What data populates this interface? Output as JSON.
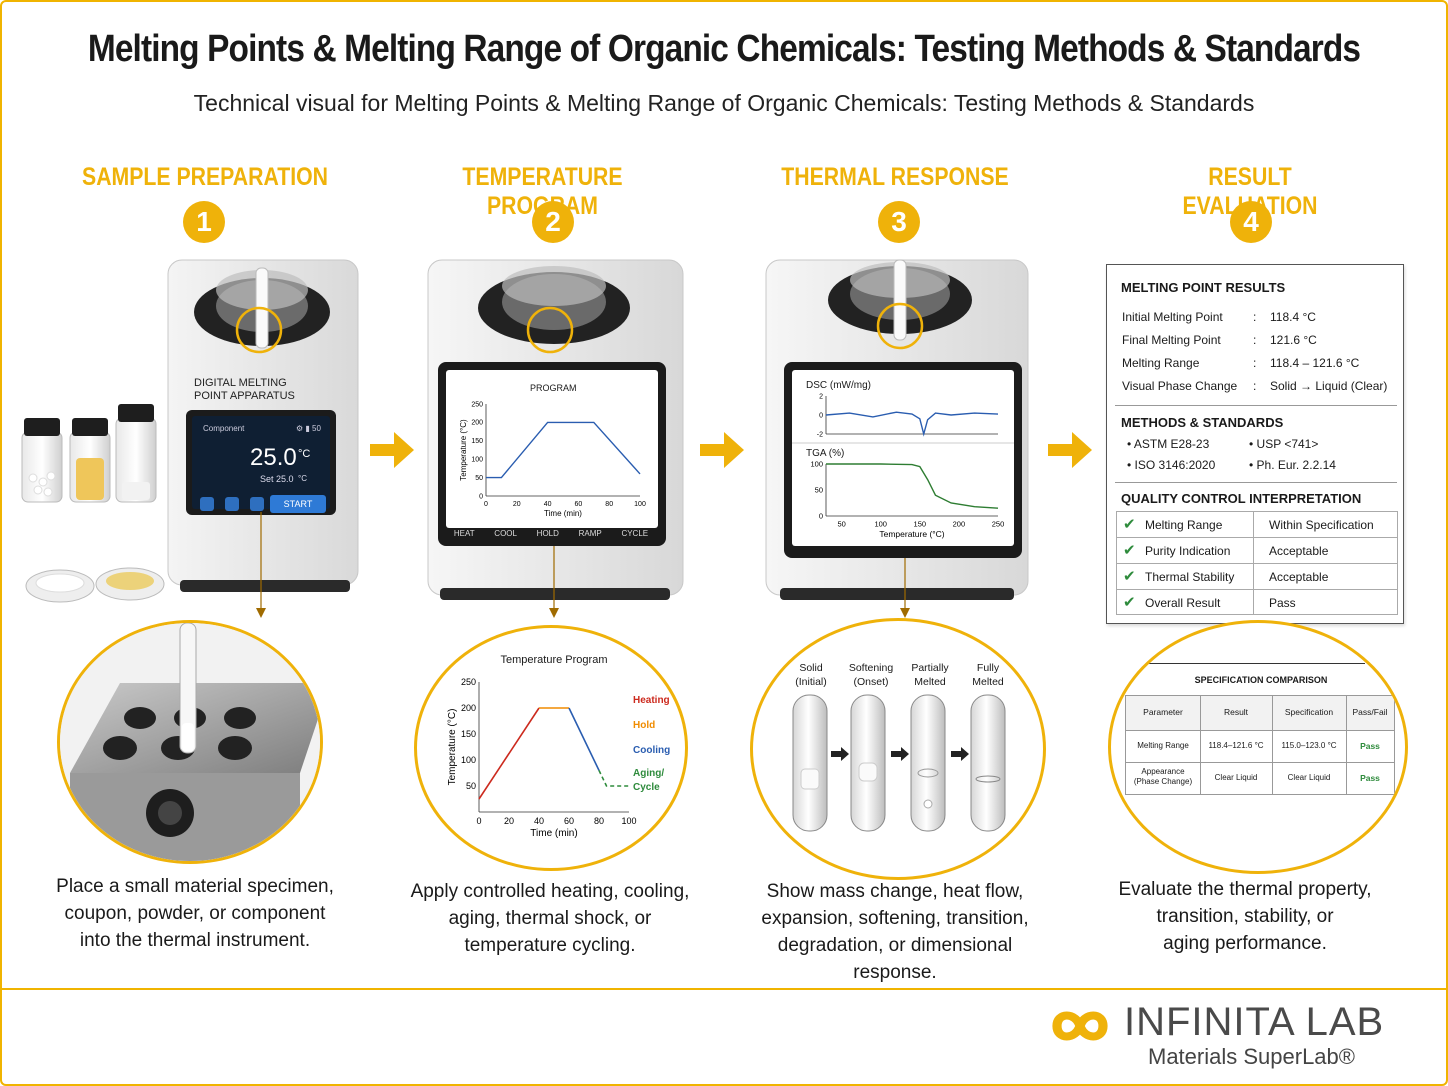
{
  "title": "Melting Points & Melting Range of Organic Chemicals: Testing Methods & Standards",
  "subtitle": "Technical visual for Melting Points & Melting Range of Organic Chemicals: Testing Methods & Standards",
  "colors": {
    "accent": "#efb20a",
    "heating": "#cc2a1e",
    "hold": "#f08c00",
    "cooling": "#2a5db0",
    "aging": "#2e8b3c",
    "dsc": "#2a5db0",
    "tga": "#2e7d32"
  },
  "steps": [
    {
      "number": "1",
      "heading": "SAMPLE PREPARATION",
      "description": [
        "Place a small material specimen,",
        "coupon, powder, or component",
        "into the thermal instrument."
      ]
    },
    {
      "number": "2",
      "heading": "TEMPERATURE PROGRAM",
      "description": [
        "Apply controlled heating, cooling,",
        "aging, thermal shock, or",
        "temperature cycling."
      ]
    },
    {
      "number": "3",
      "heading": "THERMAL RESPONSE",
      "description": [
        "Show mass change, heat flow,",
        "expansion, softening, transition,",
        "degradation, or dimensional response."
      ]
    },
    {
      "number": "4",
      "heading": "RESULT EVALUATION",
      "description": [
        "Evaluate the thermal property,",
        "transition, stability, or",
        "aging performance."
      ]
    }
  ],
  "device1": {
    "label_line1": "DIGITAL MELTING",
    "label_line2": "POINT APPARATUS",
    "screen_header": "Component",
    "screen_status": "⚙ ▮ 50",
    "reading": "25.0",
    "reading_unit": "°C",
    "set_label": "Set",
    "set_value": "25.0",
    "set_unit": "°C",
    "start_label": "START"
  },
  "device2": {
    "screen_title": "PROGRAM",
    "ylabel": "Temperature (°C)",
    "xlabel": "Time (min)",
    "buttons": [
      "HEAT",
      "COOL",
      "HOLD",
      "RAMP",
      "CYCLE"
    ]
  },
  "device3": {
    "dsc_label": "DSC (mW/mg)",
    "tga_label": "TGA (%)",
    "xlabel": "Temperature (°C)"
  },
  "temp_program_zoom": {
    "title": "Temperature Program",
    "ylabel": "Temperature (°C)",
    "xlabel": "Time (min)",
    "legend": [
      "Heating",
      "Hold",
      "Cooling",
      "Aging/",
      "Cycle"
    ]
  },
  "tube_stages": [
    {
      "line1": "Solid",
      "line2": "(Initial)"
    },
    {
      "line1": "Softening",
      "line2": "(Onset)"
    },
    {
      "line1": "Partially",
      "line2": "Melted"
    },
    {
      "line1": "Fully",
      "line2": "Melted"
    }
  ],
  "results": {
    "heading": "MELTING POINT RESULTS",
    "rows": [
      {
        "label": "Initial Melting Point",
        "sep": ":",
        "value": "118.4 °C"
      },
      {
        "label": "Final Melting Point",
        "sep": ":",
        "value": "121.6 °C"
      },
      {
        "label": "Melting Range",
        "sep": ":",
        "value": "118.4 – 121.6 °C"
      },
      {
        "label": "Visual Phase Change",
        "sep": ":",
        "value": "Solid → Liquid (Clear)"
      }
    ],
    "methods_heading": "METHODS & STANDARDS",
    "methods": [
      "• ASTM E28-23",
      "• USP <741>",
      "• ISO 3146:2020",
      "• Ph. Eur. 2.2.14"
    ],
    "qc_heading": "QUALITY CONTROL INTERPRETATION",
    "qc_rows": [
      {
        "item": "Melting Range",
        "status": "Within Specification"
      },
      {
        "item": "Purity Indication",
        "status": "Acceptable"
      },
      {
        "item": "Thermal Stability",
        "status": "Acceptable"
      },
      {
        "item": "Overall Result",
        "status": "Pass"
      }
    ]
  },
  "spec_comparison": {
    "title": "SPECIFICATION COMPARISON",
    "headers": [
      "Parameter",
      "Result",
      "Specification",
      "Pass/Fail"
    ],
    "rows": [
      [
        "Melting Range",
        "118.4–121.6 °C",
        "115.0–123.0 °C",
        "Pass"
      ],
      [
        "Appearance",
        "Clear Liquid",
        "Clear Liquid",
        "Pass"
      ]
    ],
    "row2_param_line2": "(Phase Change)"
  },
  "logo": {
    "name": "INFINITA LAB",
    "tagline": "Materials SuperLab®"
  },
  "chart_data": [
    {
      "type": "line",
      "title": "PROGRAM",
      "xlabel": "Time (min)",
      "ylabel": "Temperature (°C)",
      "xlim": [
        0,
        100
      ],
      "ylim": [
        0,
        250
      ],
      "xticks": [
        0,
        20,
        40,
        60,
        80,
        100
      ],
      "yticks": [
        0,
        50,
        100,
        150,
        200,
        250
      ],
      "series": [
        {
          "x": [
            0,
            10,
            40,
            60,
            70,
            100
          ],
          "y": [
            50,
            50,
            200,
            200,
            200,
            60
          ]
        }
      ]
    },
    {
      "type": "line",
      "title": "Temperature Program",
      "xlabel": "Time (min)",
      "ylabel": "Temperature (°C)",
      "xlim": [
        0,
        100
      ],
      "ylim": [
        0,
        250
      ],
      "xticks": [
        0,
        20,
        40,
        60,
        80,
        100
      ],
      "yticks": [
        50,
        100,
        150,
        200,
        250
      ],
      "series": [
        {
          "name": "Heating",
          "x": [
            0,
            40
          ],
          "y": [
            25,
            200
          ]
        },
        {
          "name": "Hold",
          "x": [
            40,
            60
          ],
          "y": [
            200,
            200
          ]
        },
        {
          "name": "Cooling",
          "x": [
            60,
            80
          ],
          "y": [
            200,
            80
          ]
        },
        {
          "name": "Aging/ Cycle",
          "x": [
            80,
            85,
            100
          ],
          "y": [
            80,
            50,
            50
          ]
        }
      ]
    },
    {
      "type": "line",
      "title": "DSC (mW/mg)",
      "xlim": [
        30,
        250
      ],
      "ylim": [
        -2,
        2
      ],
      "yticks": [
        -2,
        0,
        2
      ],
      "series": [
        {
          "x": [
            30,
            60,
            90,
            120,
            140,
            150,
            155,
            160,
            170,
            190,
            220,
            250
          ],
          "y": [
            0,
            0.2,
            -0.2,
            0.3,
            0.1,
            -0.4,
            -2,
            -0.5,
            0.2,
            0,
            0.2,
            0.1
          ]
        }
      ]
    },
    {
      "type": "line",
      "title": "TGA (%)",
      "xlabel": "Temperature (°C)",
      "xlim": [
        30,
        250
      ],
      "ylim": [
        0,
        100
      ],
      "xticks": [
        50,
        100,
        150,
        200,
        250
      ],
      "yticks": [
        0,
        50,
        100
      ],
      "series": [
        {
          "x": [
            30,
            100,
            140,
            150,
            160,
            170,
            190,
            220,
            250
          ],
          "y": [
            100,
            100,
            99,
            95,
            70,
            40,
            25,
            18,
            15
          ]
        }
      ]
    }
  ]
}
